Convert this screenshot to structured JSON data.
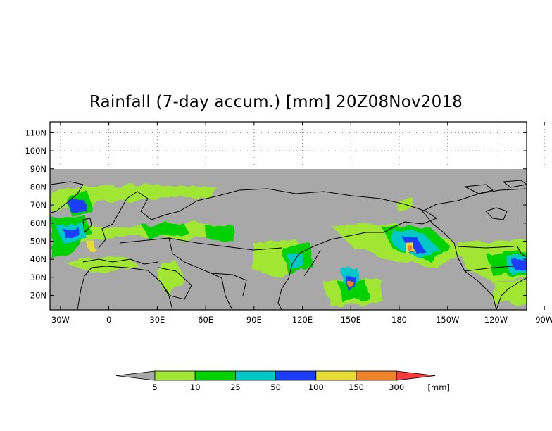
{
  "title": "Rainfall (7-day accum.) [mm] 20Z08Nov2018",
  "lat_labels": [
    "110N",
    "100N",
    "90N",
    "80N",
    "70N",
    "60N",
    "50N",
    "40N",
    "30N",
    "20N"
  ],
  "lon_labels": [
    "30W",
    "0",
    "30E",
    "60E",
    "90E",
    "120E",
    "150E",
    "180",
    "150W",
    "120W",
    "90W"
  ],
  "colorbar": {
    "unit": "[mm]",
    "levels": [
      "5",
      "10",
      "25",
      "50",
      "100",
      "150",
      "300"
    ],
    "colors": [
      "#a8a8a8",
      "#a0e632",
      "#00d200",
      "#00c8c8",
      "#1e3cff",
      "#e6dc32",
      "#f08228",
      "#fa3c3c"
    ]
  },
  "colors": {
    "no_data": "#a8a8a8",
    "background": "#ffffff",
    "coastline": "#000000"
  }
}
